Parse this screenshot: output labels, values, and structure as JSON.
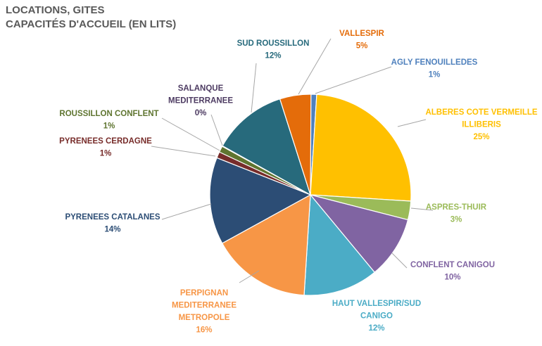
{
  "chart_data": {
    "type": "pie",
    "title": [
      "LOCATIONS, GITES",
      "CAPACITÉS D'ACCUEIL (EN LITS)"
    ],
    "slices": [
      {
        "label": [
          "AGLY FENOUILLEDES"
        ],
        "value": 1,
        "pct": "1%",
        "color": "#4F81BD"
      },
      {
        "label": [
          "ALBERES COTE VERMEILLE",
          "ILLIBERIS"
        ],
        "value": 25,
        "pct": "25%",
        "color": "#FFC000"
      },
      {
        "label": [
          "ASPRES-THUIR"
        ],
        "value": 3,
        "pct": "3%",
        "color": "#9BBB59"
      },
      {
        "label": [
          "CONFLENT CANIGOU"
        ],
        "value": 10,
        "pct": "10%",
        "color": "#8064A2"
      },
      {
        "label": [
          "HAUT VALLESPIR/SUD",
          "CANIGO"
        ],
        "value": 12,
        "pct": "12%",
        "color": "#4BACC6"
      },
      {
        "label": [
          "PERPIGNAN",
          "MEDITERRANEE",
          "METROPOLE"
        ],
        "value": 16,
        "pct": "16%",
        "color": "#F79646"
      },
      {
        "label": [
          "PYRENEES CATALANES"
        ],
        "value": 14,
        "pct": "14%",
        "color": "#2C4D75"
      },
      {
        "label": [
          "PYRENEES CERDAGNE"
        ],
        "value": 1,
        "pct": "1%",
        "color": "#772C2A"
      },
      {
        "label": [
          "ROUSSILLON CONFLENT"
        ],
        "value": 1,
        "pct": "1%",
        "color": "#5F7530"
      },
      {
        "label": [
          "SALANQUE",
          "MEDITERRANEE"
        ],
        "value": 0,
        "pct": "0%",
        "color": "#4D3B62"
      },
      {
        "label": [
          "SUD ROUSSILLON"
        ],
        "value": 12,
        "pct": "12%",
        "color": "#276A7C"
      },
      {
        "label": [
          "VALLESPIR"
        ],
        "value": 5,
        "pct": "5%",
        "color": "#E46C0A"
      }
    ]
  }
}
